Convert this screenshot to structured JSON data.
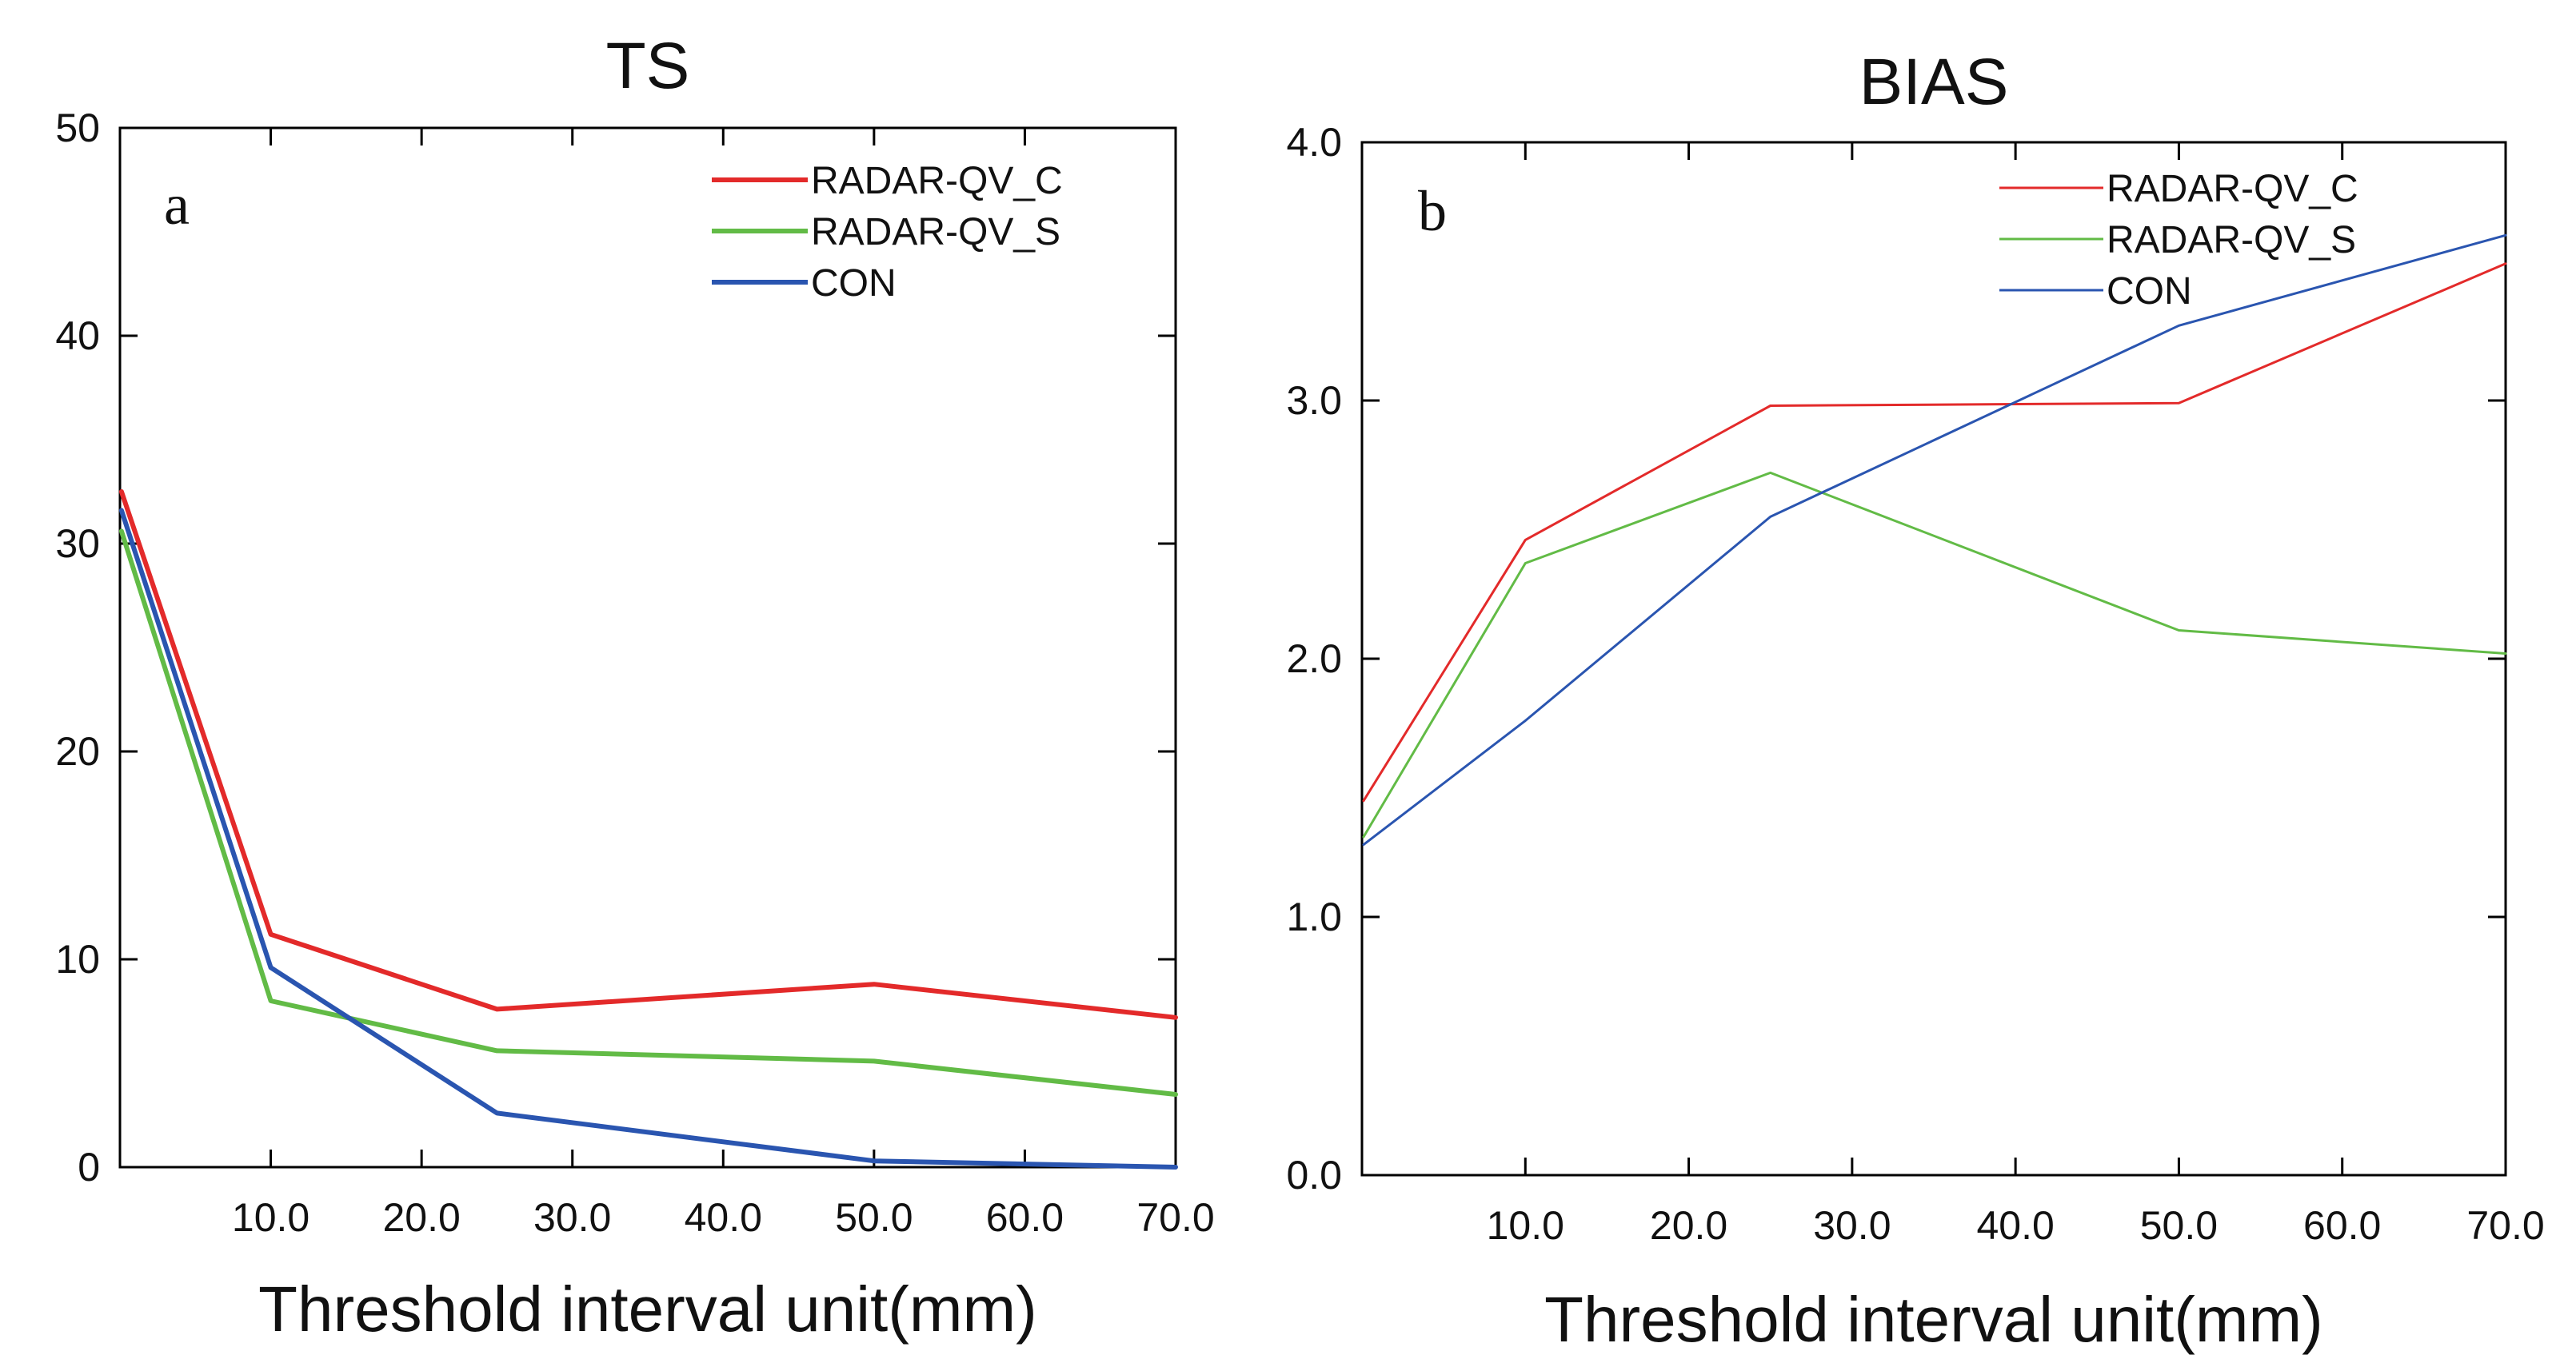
{
  "chart_data": [
    {
      "type": "line",
      "panel": "a",
      "title": "TS",
      "xlabel": "Threshold interval unit(mm)",
      "ylabel": "",
      "xlim": [
        0,
        70
      ],
      "ylim": [
        0,
        50
      ],
      "xticks": [
        10,
        20,
        30,
        40,
        50,
        60,
        70
      ],
      "xtick_labels": [
        "10.0",
        "20.0",
        "30.0",
        "40.0",
        "50.0",
        "60.0",
        "70.0"
      ],
      "yticks": [
        0,
        10,
        20,
        30,
        40,
        50
      ],
      "ytick_labels": [
        "0",
        "10",
        "20",
        "30",
        "40",
        "50"
      ],
      "x": [
        0.1,
        10,
        25,
        50,
        70
      ],
      "legend_position": "top-right",
      "grid": false,
      "line_width": 6,
      "series": [
        {
          "name": "RADAR-QV_C",
          "color": "#e32a2a",
          "values": [
            32.5,
            11.2,
            7.6,
            8.8,
            7.2
          ]
        },
        {
          "name": "RADAR-QV_S",
          "color": "#62bb46",
          "values": [
            30.6,
            8.0,
            5.6,
            5.1,
            3.5
          ]
        },
        {
          "name": "CON",
          "color": "#2a55b0",
          "values": [
            31.6,
            9.6,
            2.6,
            0.3,
            0.0
          ]
        }
      ]
    },
    {
      "type": "line",
      "panel": "b",
      "title": "BIAS",
      "xlabel": "Threshold interval unit(mm)",
      "ylabel": "",
      "xlim": [
        0,
        70
      ],
      "ylim": [
        0,
        4
      ],
      "xticks": [
        10,
        20,
        30,
        40,
        50,
        60,
        70
      ],
      "xtick_labels": [
        "10.0",
        "20.0",
        "30.0",
        "40.0",
        "50.0",
        "60.0",
        "70.0"
      ],
      "yticks": [
        0,
        1,
        2,
        3,
        4
      ],
      "ytick_labels": [
        "0.0",
        "1.0",
        "2.0",
        "3.0",
        "4.0"
      ],
      "x": [
        0.1,
        10,
        25,
        50,
        70
      ],
      "legend_position": "top-right",
      "grid": false,
      "line_width": 3,
      "series": [
        {
          "name": "RADAR-QV_C",
          "color": "#e32a2a",
          "values": [
            1.45,
            2.46,
            2.98,
            2.99,
            3.53
          ]
        },
        {
          "name": "RADAR-QV_S",
          "color": "#62bb46",
          "values": [
            1.31,
            2.37,
            2.72,
            2.11,
            2.02
          ]
        },
        {
          "name": "CON",
          "color": "#2a55b0",
          "values": [
            1.28,
            1.76,
            2.55,
            3.29,
            3.64
          ]
        }
      ]
    }
  ]
}
